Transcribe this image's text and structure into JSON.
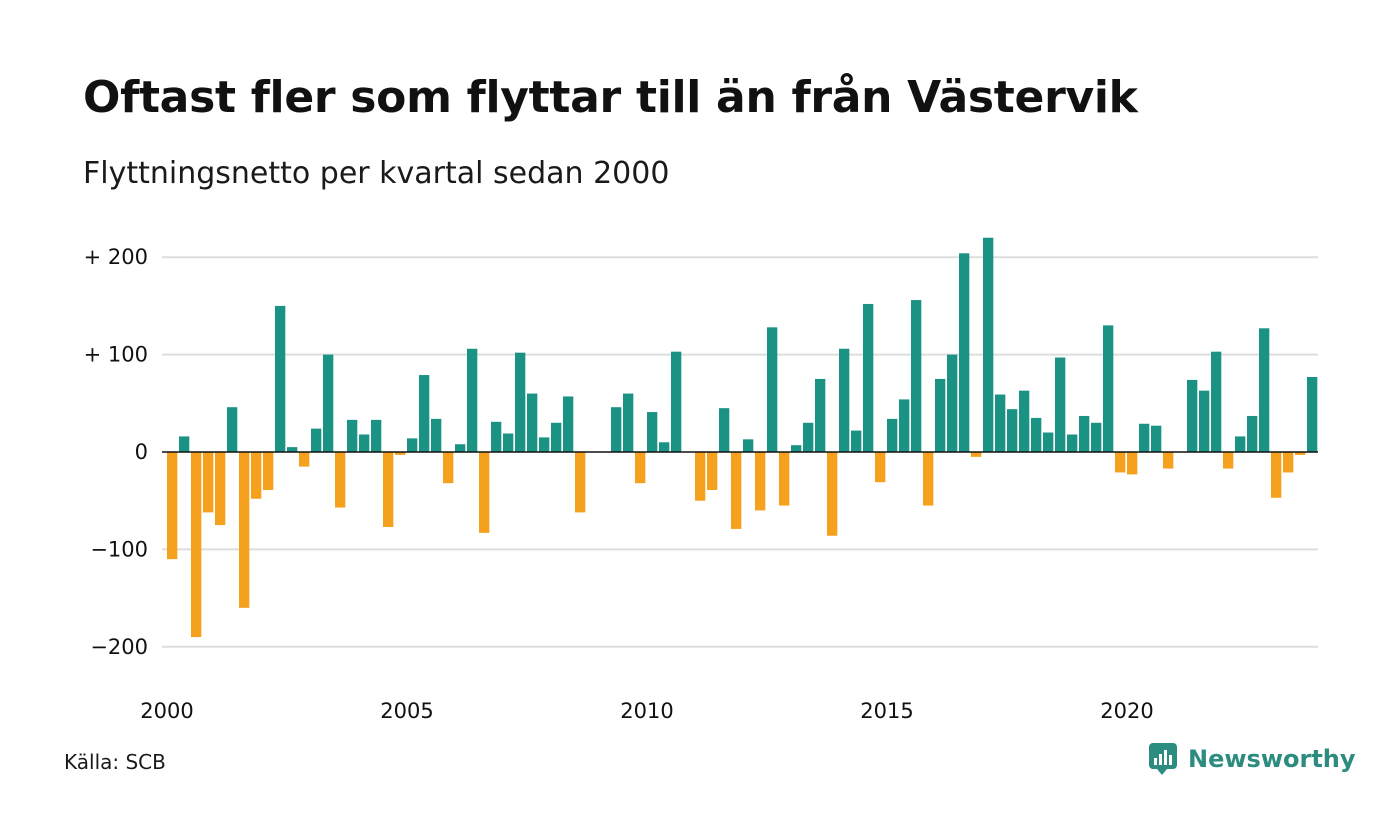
{
  "title": "Oftast fler som flyttar till än från Västervik",
  "subtitle": "Flyttningsnetto per kvartal sedan 2000",
  "source": "Källa: SCB",
  "brand": "Newsworthy",
  "colors": {
    "positive": "#1b9384",
    "negative": "#f5a11d",
    "grid": "#dddddd",
    "zero_line": "#111111",
    "brand": "#2c8c80"
  },
  "chart_data": {
    "type": "bar",
    "title": "Oftast fler som flyttar till än från Västervik",
    "subtitle": "Flyttningsnetto per kvartal sedan 2000",
    "xlabel": "",
    "ylabel": "",
    "ylim": [
      -230,
      220
    ],
    "y_ticks": [
      {
        "value": 200,
        "label": "+ 200"
      },
      {
        "value": 100,
        "label": "+ 100"
      },
      {
        "value": 0,
        "label": "0"
      },
      {
        "value": -100,
        "label": "−100"
      },
      {
        "value": -200,
        "label": "−200"
      }
    ],
    "x_ticks": [
      "2000",
      "2005",
      "2010",
      "2015",
      "2020"
    ],
    "x_start_year": 2000,
    "grid": true,
    "values": [
      -110,
      16,
      -190,
      -62,
      -75,
      46,
      -160,
      -48,
      -39,
      150,
      5,
      -15,
      24,
      100,
      -57,
      33,
      18,
      33,
      -77,
      -3,
      14,
      79,
      34,
      -32,
      8,
      106,
      -83,
      31,
      19,
      102,
      60,
      15,
      30,
      57,
      -62,
      0,
      0,
      46,
      60,
      -32,
      41,
      10,
      103,
      0,
      -50,
      -39,
      45,
      -79,
      13,
      -60,
      128,
      -55,
      7,
      30,
      75,
      -86,
      106,
      22,
      152,
      -31,
      34,
      54,
      156,
      -55,
      75,
      100,
      204,
      -5,
      220,
      59,
      44,
      63,
      35,
      20,
      97,
      18,
      37,
      30,
      130,
      -21,
      -23,
      29,
      27,
      -17,
      0,
      74,
      63,
      103,
      -17,
      16,
      37,
      127,
      -47,
      -21,
      -3,
      77
    ]
  }
}
